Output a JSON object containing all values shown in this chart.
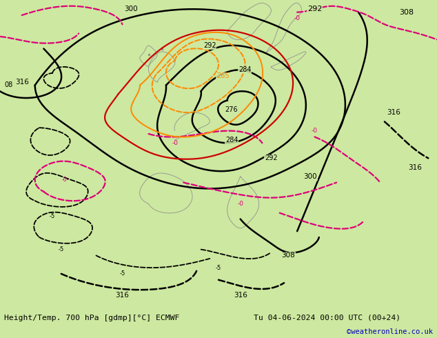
{
  "title_left": "Height/Temp. 700 hPa [gdmp][°C] ECMWF",
  "title_right": "Tu 04-06-2024 00:00 UTC (00+24)",
  "credit": "©weatheronline.co.uk",
  "bg_map": "#cde8a0",
  "bg_fig": "#cde8a0",
  "bottom_bar_color": "#e0e0e0",
  "credit_color": "#0000bb",
  "figsize": [
    6.34,
    4.9
  ],
  "dpi": 100,
  "black": "#000000",
  "magenta": "#dd007a",
  "orange": "#ff8800",
  "red": "#cc0000",
  "gray": "#909090"
}
